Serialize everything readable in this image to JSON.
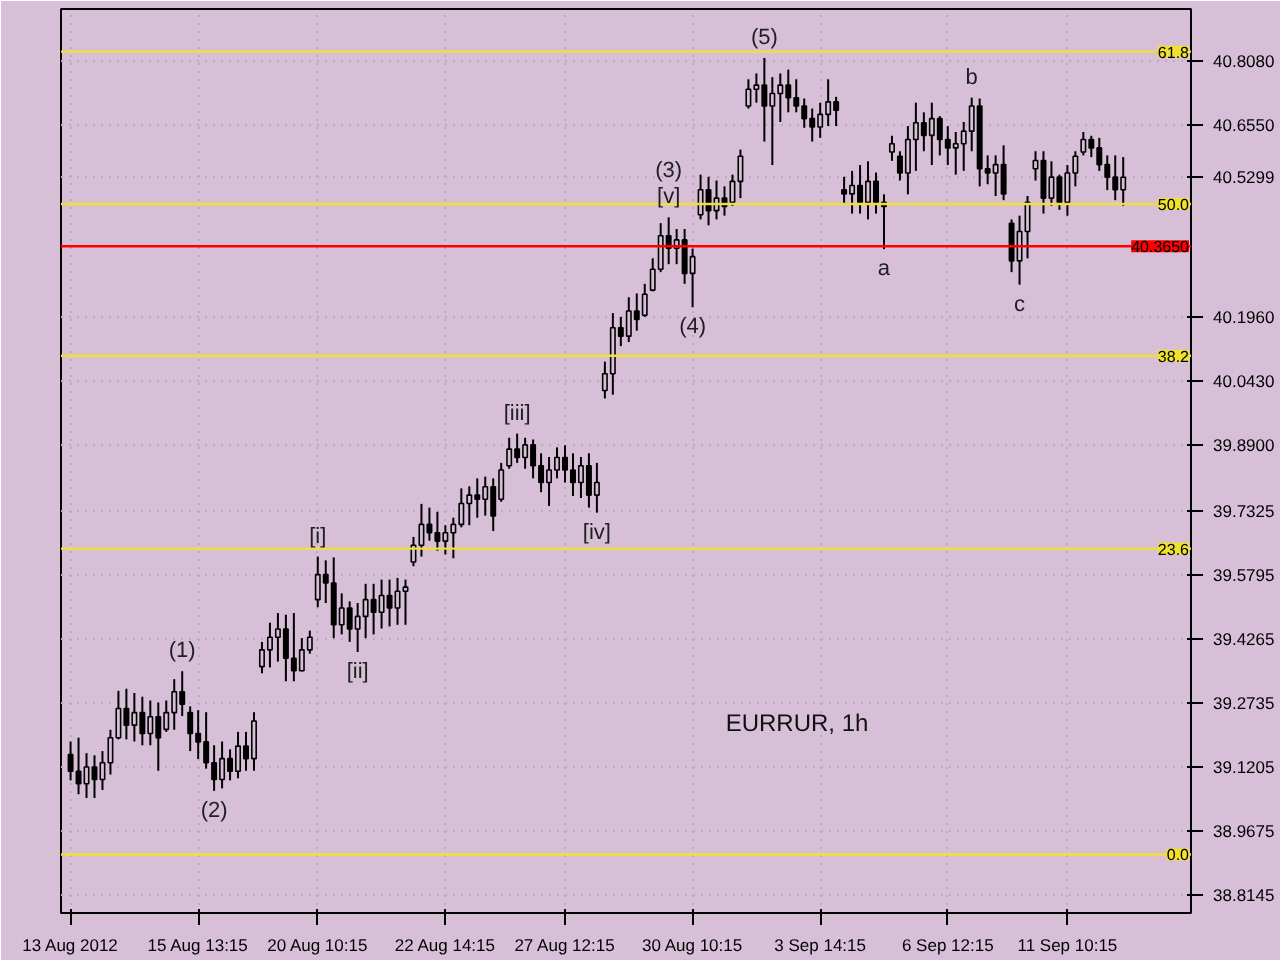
{
  "chart_data": {
    "type": "candlestick",
    "categories": [
      "13 Aug 2012",
      null,
      null,
      null,
      null,
      null,
      null,
      null,
      null,
      null,
      null,
      null,
      null,
      null,
      null,
      null,
      "15 Aug 13:15",
      null,
      null,
      null,
      null,
      null,
      null,
      null,
      null,
      null,
      null,
      null,
      null,
      null,
      null,
      "20 Aug 10:15",
      null,
      null,
      null,
      null,
      null,
      null,
      null,
      null,
      null,
      null,
      null,
      null,
      null,
      null,
      null,
      "22 Aug 14:15",
      null,
      null,
      null,
      null,
      null,
      null,
      null,
      null,
      null,
      null,
      null,
      null,
      null,
      null,
      "27 Aug 12:15",
      null,
      null,
      null,
      null,
      null,
      null,
      null,
      null,
      null,
      null,
      null,
      null,
      null,
      null,
      null,
      "30 Aug 10:15",
      null,
      null,
      null,
      null,
      null,
      null,
      null,
      null,
      null,
      null,
      null,
      null,
      null,
      null,
      null,
      "3 Sep 14:15",
      null,
      null,
      null,
      null,
      null,
      null,
      null,
      null,
      null,
      null,
      null,
      null,
      null,
      null,
      null,
      "6 Sep 12:15",
      null,
      null,
      null,
      null,
      null,
      null,
      null,
      null,
      null,
      null,
      null,
      null,
      null,
      null,
      "11 Sep 10:15",
      null,
      null,
      null,
      null,
      null,
      null,
      null
    ],
    "ohlc": [
      [
        39.15,
        39.181,
        39.088,
        39.11
      ],
      [
        39.11,
        39.19,
        39.055,
        39.08
      ],
      [
        39.08,
        39.153,
        39.046,
        39.12
      ],
      [
        39.12,
        39.148,
        39.046,
        39.09
      ],
      [
        39.09,
        39.158,
        39.065,
        39.13
      ],
      [
        39.13,
        39.209,
        39.102,
        39.19
      ],
      [
        39.19,
        39.302,
        39.186,
        39.26
      ],
      [
        39.26,
        39.307,
        39.186,
        39.22
      ],
      [
        39.22,
        39.297,
        39.181,
        39.25
      ],
      [
        39.25,
        39.288,
        39.172,
        39.2
      ],
      [
        39.2,
        39.279,
        39.172,
        39.24
      ],
      [
        39.24,
        39.274,
        39.111,
        39.19
      ],
      [
        39.21,
        39.279,
        39.204,
        39.25
      ],
      [
        39.25,
        39.33,
        39.209,
        39.3
      ],
      [
        39.3,
        39.349,
        39.242,
        39.27
      ],
      [
        39.25,
        39.265,
        39.158,
        39.2
      ],
      [
        39.2,
        39.256,
        39.139,
        39.18
      ],
      [
        39.18,
        39.251,
        39.116,
        39.13
      ],
      [
        39.13,
        39.172,
        39.063,
        39.09
      ],
      [
        39.09,
        39.181,
        39.069,
        39.14
      ],
      [
        39.14,
        39.162,
        39.088,
        39.11
      ],
      [
        39.11,
        39.204,
        39.093,
        39.17
      ],
      [
        39.17,
        39.204,
        39.111,
        39.14
      ],
      [
        39.14,
        39.251,
        39.111,
        39.23
      ],
      [
        39.36,
        39.419,
        39.344,
        39.4
      ],
      [
        39.4,
        39.465,
        39.358,
        39.43
      ],
      [
        39.43,
        39.488,
        39.372,
        39.45
      ],
      [
        39.45,
        39.484,
        39.325,
        39.38
      ],
      [
        39.38,
        39.488,
        39.325,
        39.35
      ],
      [
        39.35,
        39.428,
        39.349,
        39.4
      ],
      [
        39.4,
        39.446,
        39.391,
        39.43
      ],
      [
        39.52,
        39.623,
        39.502,
        39.58
      ],
      [
        39.58,
        39.614,
        39.512,
        39.56
      ],
      [
        39.56,
        39.621,
        39.428,
        39.46
      ],
      [
        39.46,
        39.535,
        39.437,
        39.5
      ],
      [
        39.5,
        39.516,
        39.419,
        39.45
      ],
      [
        39.45,
        39.512,
        39.395,
        39.48
      ],
      [
        39.48,
        39.558,
        39.428,
        39.52
      ],
      [
        39.52,
        39.558,
        39.437,
        39.49
      ],
      [
        39.49,
        39.568,
        39.451,
        39.53
      ],
      [
        39.53,
        39.568,
        39.456,
        39.5
      ],
      [
        39.5,
        39.572,
        39.46,
        39.54
      ],
      [
        39.54,
        39.568,
        39.46,
        39.55
      ],
      [
        39.61,
        39.67,
        39.6,
        39.65
      ],
      [
        39.65,
        39.749,
        39.623,
        39.7
      ],
      [
        39.7,
        39.74,
        39.661,
        39.68
      ],
      [
        39.68,
        39.73,
        39.637,
        39.66
      ],
      [
        39.66,
        39.698,
        39.628,
        39.68
      ],
      [
        39.68,
        39.716,
        39.619,
        39.7
      ],
      [
        39.7,
        39.786,
        39.693,
        39.75
      ],
      [
        39.75,
        39.791,
        39.698,
        39.77
      ],
      [
        39.77,
        39.81,
        39.716,
        39.76
      ],
      [
        39.76,
        39.814,
        39.721,
        39.79
      ],
      [
        39.79,
        39.81,
        39.684,
        39.72
      ],
      [
        39.76,
        39.847,
        39.754,
        39.83
      ],
      [
        39.84,
        39.907,
        39.833,
        39.88
      ],
      [
        39.88,
        39.917,
        39.847,
        39.86
      ],
      [
        39.86,
        39.907,
        39.833,
        39.89
      ],
      [
        39.89,
        39.903,
        39.81,
        39.84
      ],
      [
        39.84,
        39.87,
        39.777,
        39.8
      ],
      [
        39.8,
        39.861,
        39.744,
        39.83
      ],
      [
        39.83,
        39.884,
        39.81,
        39.86
      ],
      [
        39.86,
        39.889,
        39.8,
        39.83
      ],
      [
        39.83,
        39.87,
        39.768,
        39.8
      ],
      [
        39.8,
        39.861,
        39.763,
        39.84
      ],
      [
        39.84,
        39.87,
        39.74,
        39.77
      ],
      [
        39.77,
        39.847,
        39.728,
        39.8
      ],
      [
        40.02,
        40.089,
        40.001,
        40.06
      ],
      [
        40.06,
        40.205,
        40.01,
        40.17
      ],
      [
        40.17,
        40.196,
        40.126,
        40.15
      ],
      [
        40.15,
        40.243,
        40.136,
        40.21
      ],
      [
        40.21,
        40.252,
        40.163,
        40.19
      ],
      [
        40.2,
        40.275,
        40.196,
        40.25
      ],
      [
        40.26,
        40.336,
        40.257,
        40.31
      ],
      [
        40.31,
        40.42,
        40.303,
        40.39
      ],
      [
        40.39,
        40.434,
        40.322,
        40.36
      ],
      [
        40.36,
        40.406,
        40.322,
        40.38
      ],
      [
        40.38,
        40.406,
        40.275,
        40.3
      ],
      [
        40.3,
        40.359,
        40.219,
        40.34
      ],
      [
        40.44,
        40.536,
        40.429,
        40.5
      ],
      [
        40.5,
        40.531,
        40.415,
        40.45
      ],
      [
        40.45,
        40.522,
        40.429,
        40.48
      ],
      [
        40.48,
        40.508,
        40.438,
        40.46
      ],
      [
        40.47,
        40.536,
        40.461,
        40.52
      ],
      [
        40.52,
        40.596,
        40.48,
        40.58
      ],
      [
        40.7,
        40.764,
        40.694,
        40.74
      ],
      [
        40.74,
        40.778,
        40.708,
        40.75
      ],
      [
        40.75,
        40.815,
        40.615,
        40.7
      ],
      [
        40.7,
        40.769,
        40.559,
        40.73
      ],
      [
        40.73,
        40.778,
        40.662,
        40.75
      ],
      [
        40.75,
        40.787,
        40.685,
        40.72
      ],
      [
        40.72,
        40.764,
        40.685,
        40.7
      ],
      [
        40.7,
        40.718,
        40.648,
        40.67
      ],
      [
        40.67,
        40.694,
        40.615,
        40.65
      ],
      [
        40.65,
        40.708,
        40.624,
        40.68
      ],
      [
        40.68,
        40.764,
        40.652,
        40.71
      ],
      [
        40.71,
        40.722,
        40.652,
        40.69
      ],
      [
        40.5,
        40.531,
        40.466,
        40.49
      ],
      [
        40.49,
        40.545,
        40.443,
        40.51
      ],
      [
        40.51,
        40.559,
        40.443,
        40.47
      ],
      [
        40.47,
        40.568,
        40.429,
        40.52
      ],
      [
        40.52,
        40.541,
        40.443,
        40.47
      ],
      [
        40.47,
        40.489,
        40.358,
        40.46
      ],
      [
        40.59,
        40.629,
        40.569,
        40.61
      ],
      [
        40.58,
        40.592,
        40.522,
        40.54
      ],
      [
        40.54,
        40.652,
        40.489,
        40.62
      ],
      [
        40.62,
        40.708,
        40.545,
        40.66
      ],
      [
        40.66,
        40.685,
        40.592,
        40.63
      ],
      [
        40.63,
        40.708,
        40.559,
        40.67
      ],
      [
        40.67,
        40.676,
        40.582,
        40.62
      ],
      [
        40.62,
        40.652,
        40.559,
        40.6
      ],
      [
        40.6,
        40.638,
        40.536,
        40.61
      ],
      [
        40.61,
        40.662,
        40.545,
        40.64
      ],
      [
        40.64,
        40.72,
        40.592,
        40.7
      ],
      [
        40.7,
        40.718,
        40.508,
        40.55
      ],
      [
        40.55,
        40.582,
        40.513,
        40.54
      ],
      [
        40.54,
        40.582,
        40.485,
        40.56
      ],
      [
        40.56,
        40.606,
        40.475,
        40.49
      ],
      [
        40.42,
        40.429,
        40.303,
        40.33
      ],
      [
        40.33,
        40.438,
        40.273,
        40.4
      ],
      [
        40.4,
        40.485,
        40.336,
        40.47
      ],
      [
        40.55,
        40.592,
        40.522,
        40.57
      ],
      [
        40.57,
        40.592,
        40.443,
        40.48
      ],
      [
        40.48,
        40.568,
        40.461,
        40.53
      ],
      [
        40.53,
        40.536,
        40.452,
        40.47
      ],
      [
        40.47,
        40.559,
        40.438,
        40.54
      ],
      [
        40.54,
        40.592,
        40.508,
        40.58
      ],
      [
        40.59,
        40.638,
        40.582,
        40.62
      ],
      [
        40.62,
        40.629,
        40.578,
        40.6
      ],
      [
        40.6,
        40.624,
        40.545,
        40.56
      ],
      [
        40.56,
        40.582,
        40.499,
        40.53
      ],
      [
        40.53,
        40.582,
        40.475,
        40.5
      ],
      [
        40.5,
        40.578,
        40.461,
        40.5299
      ]
    ],
    "ylim": [
      38.771,
      40.932
    ],
    "yticks": [
      {
        "value": 38.8145,
        "label": "38.8145"
      },
      {
        "value": 38.9675,
        "label": "38.9675"
      },
      {
        "value": 39.1205,
        "label": "39.1205"
      },
      {
        "value": 39.2735,
        "label": "39.2735"
      },
      {
        "value": 39.4265,
        "label": "39.4265"
      },
      {
        "value": 39.5795,
        "label": "39.5795"
      },
      {
        "value": 39.7325,
        "label": "39.7325"
      },
      {
        "value": 39.89,
        "label": "39.8900"
      },
      {
        "value": 40.043,
        "label": "40.0430"
      },
      {
        "value": 40.196,
        "label": "40.1960"
      },
      {
        "value": 40.5299,
        "label": "40.5299"
      },
      {
        "value": 40.655,
        "label": "40.6550"
      },
      {
        "value": 40.808,
        "label": "40.8080"
      }
    ],
    "grid": true,
    "color": "#000000",
    "ref_lines": [
      {
        "axis": "y",
        "value": 40.83,
        "color": "#f0e030"
      },
      {
        "axis": "y",
        "value": 40.466,
        "color": "#f0e030"
      },
      {
        "axis": "y",
        "value": 40.103,
        "color": "#f0e030"
      },
      {
        "axis": "y",
        "value": 39.642,
        "color": "#f0e030"
      },
      {
        "axis": "y",
        "value": 38.911,
        "color": "#f0e030"
      },
      {
        "axis": "y",
        "value": 40.365,
        "label": "40.3650",
        "color": "#ff0000"
      }
    ],
    "annotations": [
      {
        "text": "(1)",
        "y": 39.349
      },
      {
        "text": "(2)",
        "y": 39.063
      },
      {
        "text": "[i]",
        "y": 39.623
      },
      {
        "text": "[ii]",
        "y": 39.395
      },
      {
        "text": "[iii]",
        "y": 39.917
      },
      {
        "text": "[iv]",
        "y": 39.728
      },
      {
        "text": "(3)",
        "y": 40.434
      },
      {
        "text": "[v]",
        "y": 40.434
      },
      {
        "text": "(4)",
        "y": 40.219
      },
      {
        "text": "(5)",
        "y": 40.815
      },
      {
        "text": "a",
        "y": 40.358
      },
      {
        "text": "b",
        "y": 40.72
      },
      {
        "text": "c",
        "y": 40.273
      },
      {
        "text": "61.8",
        "y": 40.83
      },
      {
        "text": "50.0",
        "y": 40.466
      },
      {
        "text": "38.2",
        "y": 40.103
      },
      {
        "text": "23.6",
        "y": 39.642
      },
      {
        "text": "0.0",
        "y": 38.911
      },
      "EURRUR, 1h"
    ]
  }
}
